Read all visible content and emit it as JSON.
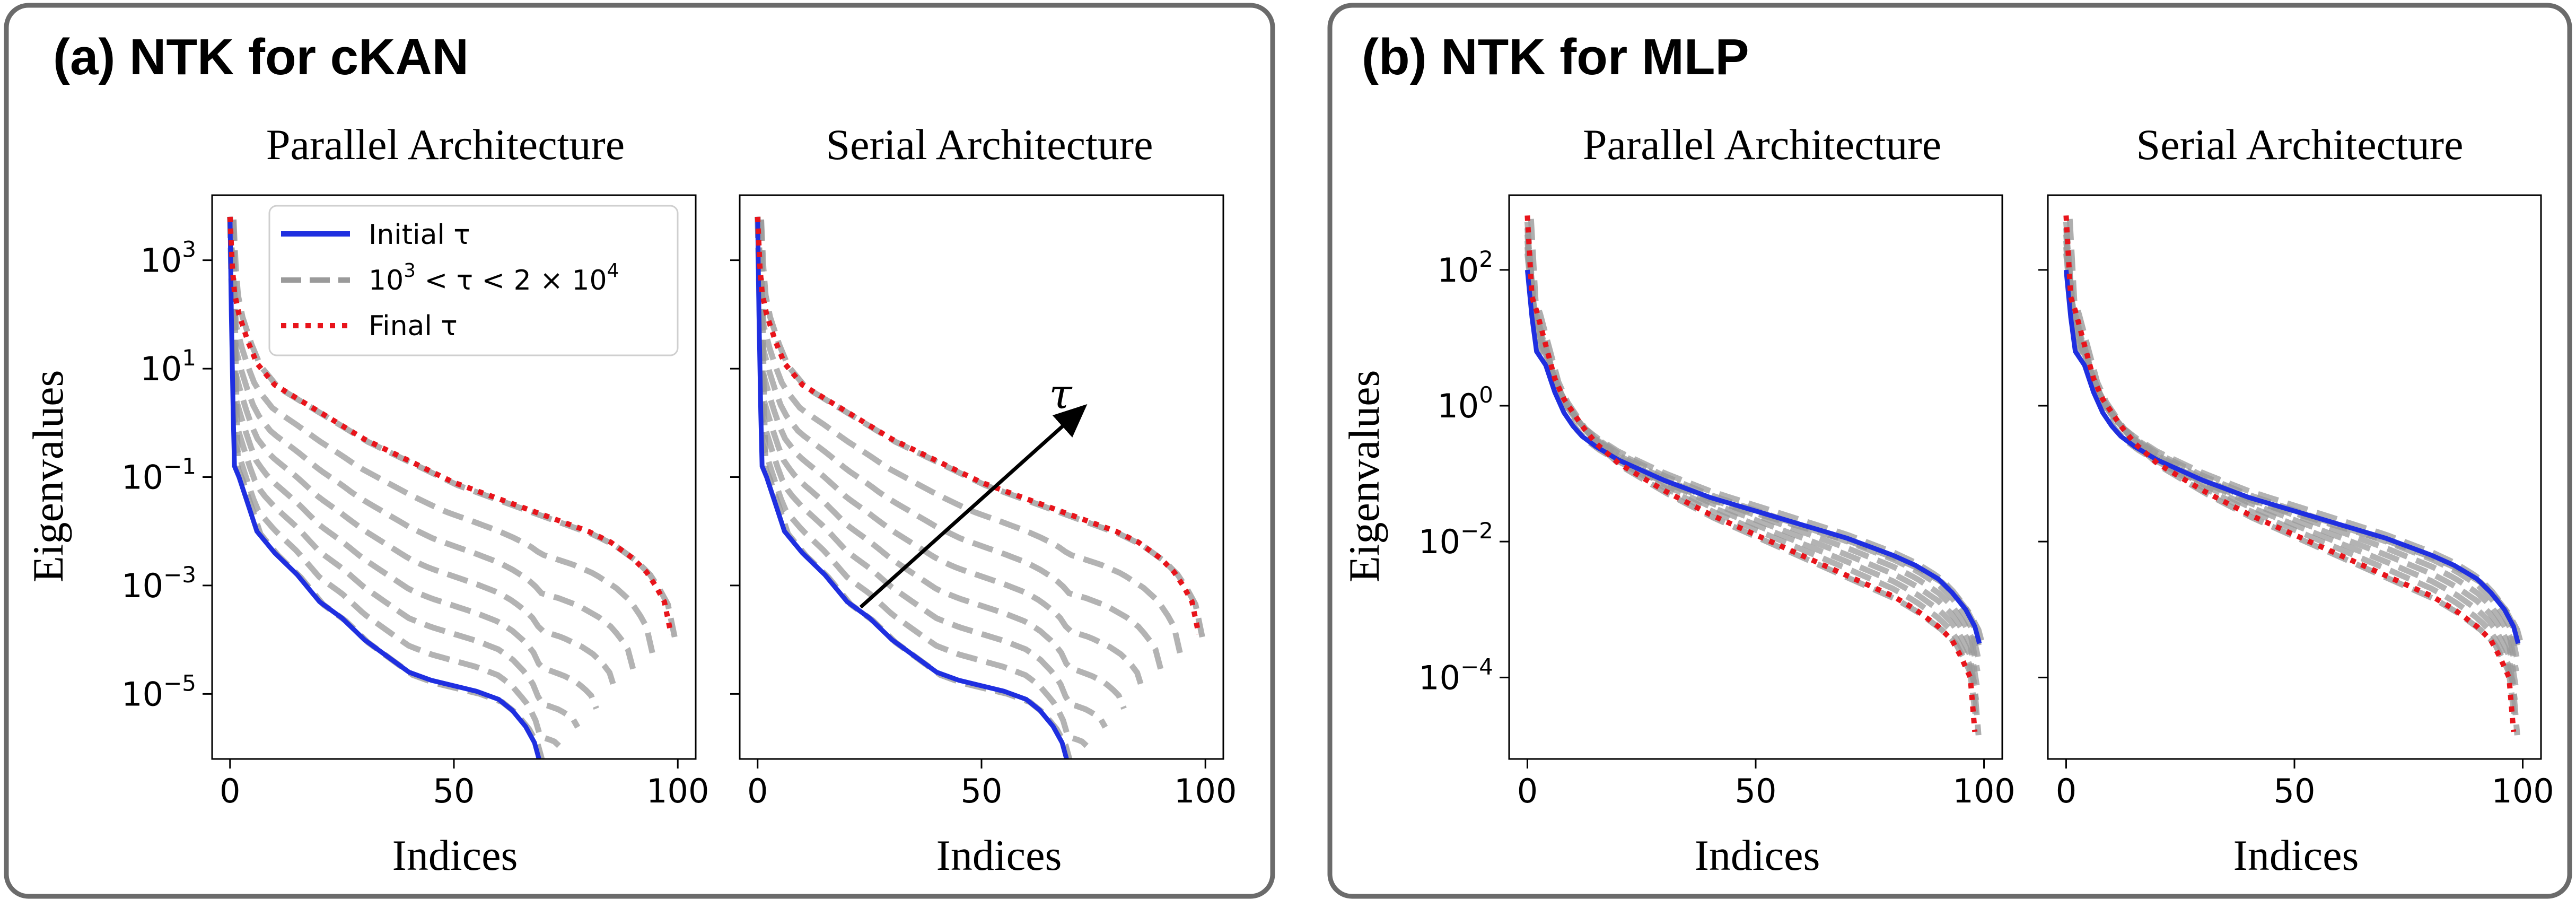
{
  "panels": [
    {
      "label": "(a) NTK for cKAN"
    },
    {
      "label": "(b) NTK for MLP"
    }
  ],
  "colors": {
    "initial": "#1f2fe0",
    "intermediate": "#9a9a9a",
    "final": "#e8141b",
    "box": "#6b6b6b"
  },
  "legend": {
    "initial": "Initial τ",
    "intermediate_parts": [
      "10",
      "3",
      " < τ < 2 × 10",
      "4"
    ],
    "final": "Final τ"
  },
  "annotation": {
    "label": "τ"
  },
  "chart_data": [
    {
      "type": "line",
      "title": "Parallel Architecture",
      "xlabel": "Indices",
      "ylabel": "Eigenvalues",
      "yscale": "log",
      "xlim": [
        -4,
        104
      ],
      "ylim_log10": [
        -6.2,
        4.2
      ],
      "xticks": [
        "0",
        "50",
        "100"
      ],
      "yticks": [
        {
          "base": "10",
          "exp": "3",
          "v": 3
        },
        {
          "base": "10",
          "exp": "1",
          "v": 1
        },
        {
          "base": "10",
          "exp": "−1",
          "v": -1
        },
        {
          "base": "10",
          "exp": "−3",
          "v": -3
        },
        {
          "base": "10",
          "exp": "−5",
          "v": -5
        }
      ],
      "legend_position": "upper-right",
      "series": [
        {
          "role": "initial",
          "x": [
            0,
            0.3,
            0.7,
            1,
            2,
            4,
            6,
            10,
            15,
            20,
            25,
            30,
            35,
            40,
            45,
            50,
            55,
            60,
            63,
            66,
            68,
            69,
            69.3
          ],
          "y_log10": [
            3.8,
            2.0,
            0.2,
            -0.8,
            -1.0,
            -1.5,
            -2.0,
            -2.4,
            -2.8,
            -3.3,
            -3.6,
            -4.0,
            -4.3,
            -4.6,
            -4.75,
            -4.85,
            -4.95,
            -5.1,
            -5.3,
            -5.6,
            -5.9,
            -6.2,
            -6.3
          ]
        },
        {
          "role": "final",
          "x": [
            0,
            0.5,
            1,
            2,
            4,
            6,
            8,
            10,
            15,
            20,
            25,
            30,
            35,
            40,
            45,
            50,
            55,
            60,
            65,
            70,
            75,
            80,
            85,
            90,
            93,
            95,
            97,
            98.5
          ],
          "y_log10": [
            3.8,
            2.9,
            2.4,
            2.0,
            1.5,
            1.1,
            0.9,
            0.7,
            0.45,
            0.2,
            -0.05,
            -0.3,
            -0.5,
            -0.7,
            -0.9,
            -1.1,
            -1.25,
            -1.4,
            -1.55,
            -1.7,
            -1.85,
            -2.0,
            -2.2,
            -2.5,
            -2.75,
            -3.0,
            -3.3,
            -3.9
          ]
        }
      ]
    },
    {
      "type": "line",
      "title": "Serial Architecture",
      "xlabel": "Indices",
      "yscale": "log",
      "xlim": [
        -4,
        104
      ],
      "ylim_log10": [
        -6.2,
        4.2
      ],
      "xticks": [
        "0",
        "50",
        "100"
      ],
      "series": [
        {
          "role": "initial",
          "x": [
            0,
            0.3,
            0.7,
            1,
            2,
            4,
            6,
            10,
            15,
            20,
            25,
            30,
            35,
            40,
            45,
            50,
            55,
            60,
            63,
            66,
            68,
            69,
            69.3
          ],
          "y_log10": [
            3.8,
            2.0,
            0.2,
            -0.8,
            -1.0,
            -1.5,
            -2.0,
            -2.4,
            -2.8,
            -3.3,
            -3.6,
            -4.0,
            -4.3,
            -4.6,
            -4.75,
            -4.85,
            -4.95,
            -5.1,
            -5.3,
            -5.6,
            -5.9,
            -6.2,
            -6.3
          ]
        },
        {
          "role": "final",
          "x": [
            0,
            0.5,
            1,
            2,
            4,
            6,
            8,
            10,
            15,
            20,
            25,
            30,
            35,
            40,
            45,
            50,
            55,
            60,
            65,
            70,
            75,
            80,
            85,
            90,
            93,
            95,
            97,
            98.5
          ],
          "y_log10": [
            3.8,
            2.9,
            2.4,
            2.0,
            1.5,
            1.1,
            0.9,
            0.7,
            0.45,
            0.2,
            -0.05,
            -0.3,
            -0.5,
            -0.7,
            -0.9,
            -1.1,
            -1.25,
            -1.4,
            -1.55,
            -1.7,
            -1.85,
            -2.0,
            -2.2,
            -2.5,
            -2.75,
            -3.0,
            -3.3,
            -3.9
          ]
        }
      ],
      "arrow": {
        "from": [
          23,
          -3.4
        ],
        "to": [
          73,
          0.3
        ]
      }
    },
    {
      "type": "line",
      "title": "Parallel Architecture",
      "xlabel": "Indices",
      "ylabel": "Eigenvalues",
      "yscale": "log",
      "xlim": [
        -4,
        104
      ],
      "ylim_log10": [
        -5.2,
        3.1
      ],
      "xticks": [
        "0",
        "50",
        "100"
      ],
      "yticks": [
        {
          "base": "10",
          "exp": "2",
          "v": 2
        },
        {
          "base": "10",
          "exp": "0",
          "v": 0
        },
        {
          "base": "10",
          "exp": "−2",
          "v": -2
        },
        {
          "base": "10",
          "exp": "−4",
          "v": -4
        }
      ],
      "series": [
        {
          "role": "initial",
          "x": [
            0,
            1,
            2,
            4,
            6,
            8,
            10,
            12,
            15,
            20,
            25,
            30,
            40,
            50,
            60,
            70,
            80,
            85,
            90,
            93,
            96,
            98,
            99
          ],
          "y_log10": [
            2.0,
            1.3,
            0.8,
            0.6,
            0.2,
            -0.1,
            -0.3,
            -0.45,
            -0.6,
            -0.8,
            -0.95,
            -1.1,
            -1.35,
            -1.55,
            -1.75,
            -1.95,
            -2.2,
            -2.35,
            -2.55,
            -2.75,
            -3.0,
            -3.25,
            -3.5
          ]
        },
        {
          "role": "final",
          "x": [
            0,
            1,
            2,
            4,
            6,
            8,
            10,
            12,
            15,
            20,
            25,
            30,
            40,
            50,
            60,
            70,
            80,
            85,
            90,
            93,
            95,
            97,
            98
          ],
          "y_log10": [
            2.8,
            1.6,
            1.4,
            0.9,
            0.4,
            0.1,
            -0.1,
            -0.3,
            -0.55,
            -0.85,
            -1.05,
            -1.25,
            -1.6,
            -1.9,
            -2.2,
            -2.5,
            -2.8,
            -3.0,
            -3.25,
            -3.45,
            -3.7,
            -4.0,
            -4.8
          ]
        }
      ]
    },
    {
      "type": "line",
      "title": "Serial Architecture",
      "xlabel": "Indices",
      "yscale": "log",
      "xlim": [
        -4,
        104
      ],
      "ylim_log10": [
        -5.2,
        3.1
      ],
      "xticks": [
        "0",
        "50",
        "100"
      ],
      "series": [
        {
          "role": "initial",
          "x": [
            0,
            1,
            2,
            4,
            6,
            8,
            10,
            12,
            15,
            20,
            25,
            30,
            40,
            50,
            60,
            70,
            80,
            85,
            90,
            93,
            96,
            98,
            99
          ],
          "y_log10": [
            2.0,
            1.3,
            0.8,
            0.6,
            0.2,
            -0.1,
            -0.3,
            -0.45,
            -0.6,
            -0.8,
            -0.95,
            -1.1,
            -1.35,
            -1.55,
            -1.75,
            -1.95,
            -2.2,
            -2.35,
            -2.55,
            -2.75,
            -3.0,
            -3.25,
            -3.5
          ]
        },
        {
          "role": "final",
          "x": [
            0,
            1,
            2,
            4,
            6,
            8,
            10,
            12,
            15,
            20,
            25,
            30,
            40,
            50,
            60,
            70,
            80,
            85,
            90,
            93,
            95,
            97,
            98
          ],
          "y_log10": [
            2.8,
            1.6,
            1.4,
            0.9,
            0.4,
            0.1,
            -0.1,
            -0.3,
            -0.55,
            -0.85,
            -1.05,
            -1.25,
            -1.6,
            -1.9,
            -2.2,
            -2.5,
            -2.8,
            -3.0,
            -3.25,
            -3.45,
            -3.7,
            -4.0,
            -4.8
          ]
        }
      ]
    }
  ]
}
